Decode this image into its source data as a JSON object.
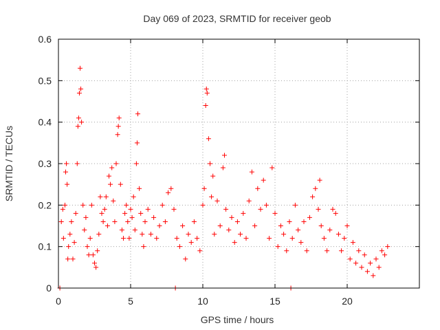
{
  "chart_data": {
    "type": "scatter",
    "title": "Day 069 of 2023, SRMTID for receiver geob",
    "xlabel": "GPS time / hours",
    "ylabel": "SRMTID / TECUs",
    "xlim": [
      0,
      25
    ],
    "ylim": [
      0,
      0.6
    ],
    "x_ticks": [
      0,
      5,
      10,
      15,
      20
    ],
    "x_tick_labels": [
      "0",
      "5",
      "10",
      "15",
      "20"
    ],
    "y_ticks": [
      0,
      0.1,
      0.2,
      0.3,
      0.4,
      0.5,
      0.6
    ],
    "y_tick_labels": [
      "0",
      "0.1",
      "0.2",
      "0.3",
      "0.4",
      "0.5",
      "0.6"
    ],
    "grid": true,
    "marker": "+",
    "color": "#ff0000",
    "series": [
      {
        "name": "SRMTID",
        "points": [
          [
            0.1,
            0.0
          ],
          [
            8.1,
            0.0
          ],
          [
            16.1,
            0.0
          ],
          [
            0.2,
            0.16
          ],
          [
            0.3,
            0.19
          ],
          [
            0.35,
            0.12
          ],
          [
            0.45,
            0.2
          ],
          [
            0.5,
            0.28
          ],
          [
            0.55,
            0.3
          ],
          [
            0.6,
            0.25
          ],
          [
            0.65,
            0.07
          ],
          [
            0.7,
            0.1
          ],
          [
            0.8,
            0.13
          ],
          [
            0.9,
            0.16
          ],
          [
            1.0,
            0.07
          ],
          [
            1.1,
            0.11
          ],
          [
            1.2,
            0.18
          ],
          [
            1.3,
            0.3
          ],
          [
            1.35,
            0.39
          ],
          [
            1.4,
            0.41
          ],
          [
            1.45,
            0.47
          ],
          [
            1.5,
            0.53
          ],
          [
            1.55,
            0.48
          ],
          [
            1.6,
            0.4
          ],
          [
            1.7,
            0.2
          ],
          [
            1.8,
            0.14
          ],
          [
            1.9,
            0.17
          ],
          [
            2.0,
            0.1
          ],
          [
            2.1,
            0.08
          ],
          [
            2.2,
            0.12
          ],
          [
            2.3,
            0.2
          ],
          [
            2.4,
            0.08
          ],
          [
            2.5,
            0.06
          ],
          [
            2.6,
            0.05
          ],
          [
            2.7,
            0.09
          ],
          [
            2.8,
            0.13
          ],
          [
            2.9,
            0.22
          ],
          [
            3.0,
            0.18
          ],
          [
            3.1,
            0.16
          ],
          [
            3.2,
            0.19
          ],
          [
            3.3,
            0.22
          ],
          [
            3.4,
            0.15
          ],
          [
            3.5,
            0.27
          ],
          [
            3.6,
            0.25
          ],
          [
            3.7,
            0.29
          ],
          [
            3.8,
            0.21
          ],
          [
            3.9,
            0.16
          ],
          [
            4.0,
            0.3
          ],
          [
            4.1,
            0.37
          ],
          [
            4.15,
            0.39
          ],
          [
            4.2,
            0.41
          ],
          [
            4.3,
            0.25
          ],
          [
            4.4,
            0.14
          ],
          [
            4.5,
            0.12
          ],
          [
            4.6,
            0.18
          ],
          [
            4.7,
            0.2
          ],
          [
            4.8,
            0.16
          ],
          [
            4.9,
            0.12
          ],
          [
            5.0,
            0.19
          ],
          [
            5.1,
            0.17
          ],
          [
            5.2,
            0.22
          ],
          [
            5.3,
            0.14
          ],
          [
            5.4,
            0.3
          ],
          [
            5.45,
            0.35
          ],
          [
            5.5,
            0.42
          ],
          [
            5.6,
            0.24
          ],
          [
            5.7,
            0.18
          ],
          [
            5.8,
            0.13
          ],
          [
            5.9,
            0.1
          ],
          [
            6.0,
            0.16
          ],
          [
            6.2,
            0.19
          ],
          [
            6.4,
            0.13
          ],
          [
            6.6,
            0.17
          ],
          [
            6.8,
            0.12
          ],
          [
            7.0,
            0.15
          ],
          [
            7.2,
            0.2
          ],
          [
            7.4,
            0.16
          ],
          [
            7.6,
            0.23
          ],
          [
            7.8,
            0.24
          ],
          [
            8.0,
            0.19
          ],
          [
            8.2,
            0.12
          ],
          [
            8.4,
            0.1
          ],
          [
            8.6,
            0.15
          ],
          [
            8.8,
            0.07
          ],
          [
            9.0,
            0.13
          ],
          [
            9.2,
            0.11
          ],
          [
            9.4,
            0.16
          ],
          [
            9.6,
            0.12
          ],
          [
            9.8,
            0.09
          ],
          [
            10.0,
            0.2
          ],
          [
            10.1,
            0.24
          ],
          [
            10.2,
            0.44
          ],
          [
            10.25,
            0.48
          ],
          [
            10.3,
            0.47
          ],
          [
            10.4,
            0.36
          ],
          [
            10.5,
            0.3
          ],
          [
            10.6,
            0.22
          ],
          [
            10.7,
            0.27
          ],
          [
            10.8,
            0.13
          ],
          [
            11.0,
            0.21
          ],
          [
            11.2,
            0.15
          ],
          [
            11.4,
            0.29
          ],
          [
            11.5,
            0.32
          ],
          [
            11.6,
            0.19
          ],
          [
            11.8,
            0.14
          ],
          [
            12.0,
            0.17
          ],
          [
            12.2,
            0.11
          ],
          [
            12.4,
            0.16
          ],
          [
            12.6,
            0.13
          ],
          [
            12.8,
            0.18
          ],
          [
            13.0,
            0.12
          ],
          [
            13.2,
            0.21
          ],
          [
            13.4,
            0.28
          ],
          [
            13.6,
            0.15
          ],
          [
            13.8,
            0.24
          ],
          [
            14.0,
            0.19
          ],
          [
            14.2,
            0.26
          ],
          [
            14.4,
            0.2
          ],
          [
            14.6,
            0.12
          ],
          [
            14.8,
            0.29
          ],
          [
            15.0,
            0.18
          ],
          [
            15.2,
            0.1
          ],
          [
            15.4,
            0.15
          ],
          [
            15.6,
            0.13
          ],
          [
            15.8,
            0.09
          ],
          [
            16.0,
            0.16
          ],
          [
            16.2,
            0.12
          ],
          [
            16.4,
            0.2
          ],
          [
            16.6,
            0.14
          ],
          [
            16.8,
            0.11
          ],
          [
            17.0,
            0.16
          ],
          [
            17.2,
            0.09
          ],
          [
            17.4,
            0.17
          ],
          [
            17.6,
            0.22
          ],
          [
            17.8,
            0.24
          ],
          [
            18.0,
            0.19
          ],
          [
            18.1,
            0.26
          ],
          [
            18.2,
            0.15
          ],
          [
            18.4,
            0.12
          ],
          [
            18.6,
            0.09
          ],
          [
            18.8,
            0.14
          ],
          [
            19.0,
            0.19
          ],
          [
            19.2,
            0.18
          ],
          [
            19.4,
            0.13
          ],
          [
            19.6,
            0.09
          ],
          [
            19.8,
            0.12
          ],
          [
            20.0,
            0.15
          ],
          [
            20.2,
            0.07
          ],
          [
            20.4,
            0.11
          ],
          [
            20.6,
            0.06
          ],
          [
            20.8,
            0.09
          ],
          [
            21.0,
            0.05
          ],
          [
            21.2,
            0.08
          ],
          [
            21.4,
            0.04
          ],
          [
            21.6,
            0.06
          ],
          [
            21.8,
            0.03
          ],
          [
            22.0,
            0.07
          ],
          [
            22.2,
            0.05
          ],
          [
            22.4,
            0.09
          ],
          [
            22.6,
            0.08
          ],
          [
            22.8,
            0.1
          ]
        ]
      }
    ]
  }
}
